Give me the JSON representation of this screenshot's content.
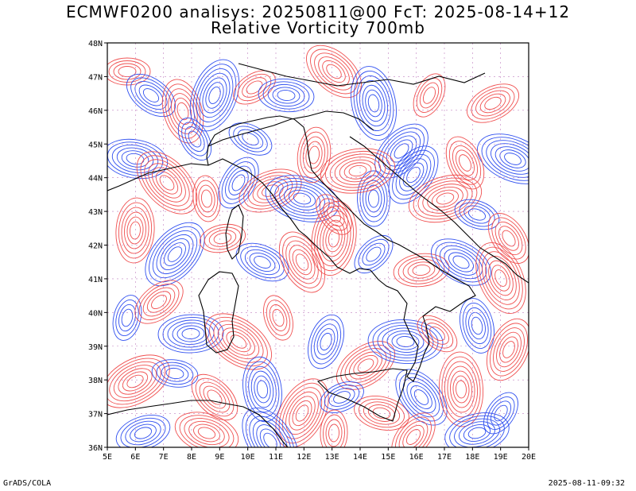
{
  "title_line1": "ECMWF0200 analisys: 20250811@00 FcT: 2025-08-14+12",
  "title_line2": "Relative Vorticity 700mb",
  "footer_left": "GrADS/COLA",
  "footer_right": "2025-08-11-09:32",
  "lat_labels": [
    "48N",
    "47N",
    "46N",
    "45N",
    "44N",
    "43N",
    "42N",
    "41N",
    "40N",
    "39N",
    "38N",
    "37N",
    "36N"
  ],
  "lon_labels": [
    "5E",
    "6E",
    "7E",
    "8E",
    "9E",
    "10E",
    "11E",
    "12E",
    "13E",
    "14E",
    "15E",
    "16E",
    "17E",
    "18E",
    "19E",
    "20E"
  ],
  "colors": {
    "positive": "#f05050",
    "negative": "#3050f0",
    "coast": "#000000",
    "grid": "#c080c0"
  }
}
